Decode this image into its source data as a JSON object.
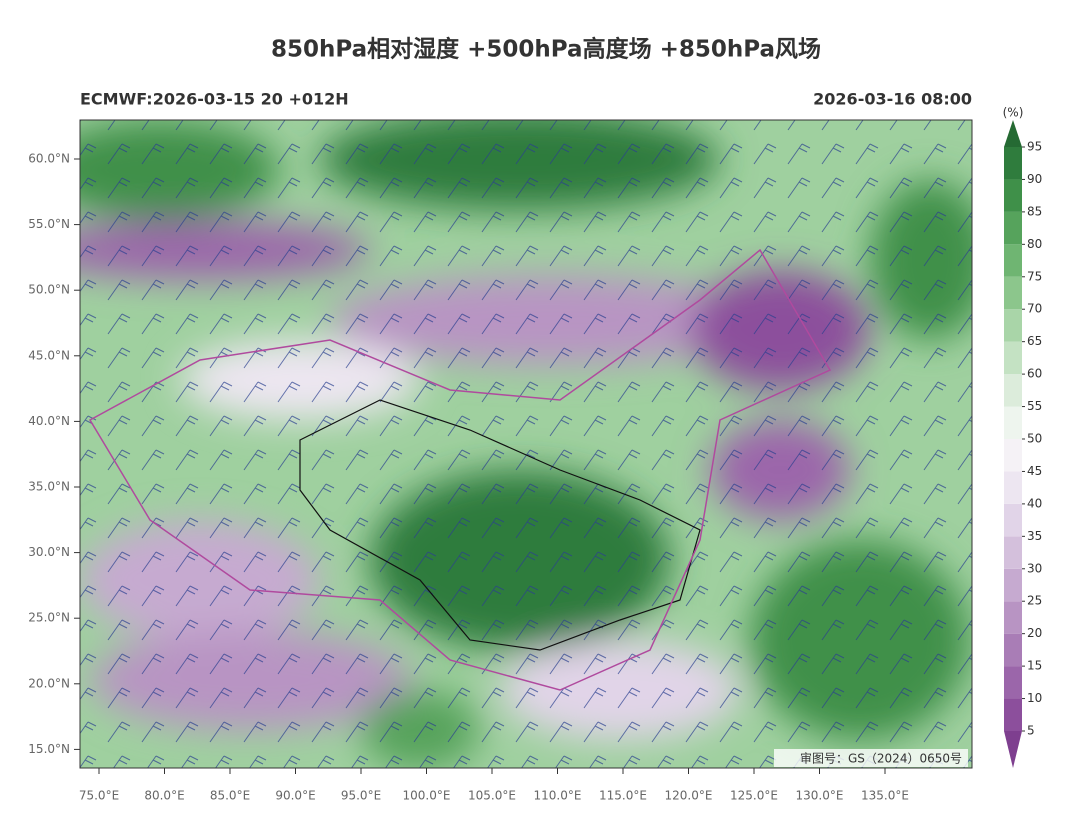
{
  "header": {
    "title": "850hPa相对湿度 +500hPa高度场 +850hPa风场",
    "left": "ECMWF:2026-03-15 20 +012H",
    "right": "2026-03-16 08:00"
  },
  "map": {
    "lat_labels": [
      "60.0°N",
      "55.0°N",
      "50.0°N",
      "45.0°N",
      "40.0°N",
      "35.0°N",
      "30.0°N",
      "25.0°N",
      "20.0°N",
      "15.0°N"
    ],
    "lon_labels": [
      "75.0°E",
      "80.0°E",
      "85.0°E",
      "90.0°E",
      "95.0°E",
      "100.0°E",
      "105.0°E",
      "110.0°E",
      "115.0°E",
      "120.0°E",
      "125.0°E",
      "130.0°E",
      "135.0°E"
    ],
    "watermark": "审图号：GS（2024）0650号"
  },
  "colorbar": {
    "unit": "(%)",
    "levels": [
      5,
      10,
      15,
      20,
      25,
      30,
      35,
      40,
      45,
      50,
      55,
      60,
      65,
      70,
      75,
      80,
      85,
      90,
      95
    ],
    "colors": [
      "#7e3f8f",
      "#8c4f9c",
      "#9b66aa",
      "#a97db6",
      "#b894c3",
      "#c6aad0",
      "#d4c0dc",
      "#e1d4e8",
      "#ede6f1",
      "#f5f2f6",
      "#eef5ee",
      "#dcecdb",
      "#c4e2c3",
      "#a9d5a8",
      "#8cc68c",
      "#6fb572",
      "#56a35c",
      "#3f9049",
      "#2f7c3d",
      "#256a33"
    ]
  }
}
